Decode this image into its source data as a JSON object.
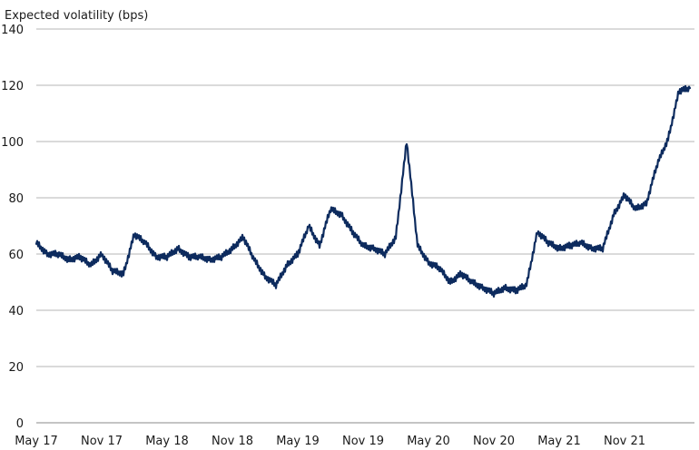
{
  "chart_data": {
    "type": "line",
    "title": "",
    "ylabel": "Expected volatility (bps)",
    "xlabel": "",
    "ylim": [
      0,
      140
    ],
    "yticks": [
      0,
      20,
      40,
      60,
      80,
      100,
      120,
      140
    ],
    "xlim": [
      "2017-05",
      "2022-05"
    ],
    "xticks": [
      "May 17",
      "Nov 17",
      "May 18",
      "Nov 18",
      "May 19",
      "Nov 19",
      "May 20",
      "Nov 20",
      "May 21",
      "Nov 21"
    ],
    "grid": "horizontal",
    "legend": "none",
    "line_color": "#0d2b5e",
    "series": [
      {
        "x": [
          "2017-05",
          "2017-06",
          "2017-07",
          "2017-08",
          "2017-09",
          "2017-10",
          "2017-11",
          "2017-12",
          "2018-01",
          "2018-02",
          "2018-03",
          "2018-04",
          "2018-05",
          "2018-06",
          "2018-07",
          "2018-08",
          "2018-09",
          "2018-10",
          "2018-11",
          "2018-12",
          "2019-01",
          "2019-02",
          "2019-03",
          "2019-04",
          "2019-05",
          "2019-06",
          "2019-07",
          "2019-08",
          "2019-09",
          "2019-10",
          "2019-11",
          "2019-12",
          "2020-01",
          "2020-02",
          "2020-03",
          "2020-04",
          "2020-05",
          "2020-06",
          "2020-07",
          "2020-08",
          "2020-09",
          "2020-10",
          "2020-11",
          "2020-12",
          "2021-01",
          "2021-02",
          "2021-03",
          "2021-04",
          "2021-05",
          "2021-06",
          "2021-07",
          "2021-08",
          "2021-09",
          "2021-10",
          "2021-11",
          "2021-12",
          "2022-01",
          "2022-02",
          "2022-03",
          "2022-04",
          "2022-05"
        ],
        "values": [
          64,
          60,
          60,
          58,
          59,
          56,
          60,
          54,
          53,
          67,
          64,
          59,
          59,
          62,
          59,
          59,
          58,
          59,
          62,
          66,
          58,
          52,
          49,
          56,
          60,
          70,
          63,
          76,
          74,
          68,
          63,
          62,
          60,
          66,
          100,
          63,
          57,
          55,
          50,
          53,
          50,
          48,
          46,
          48,
          47,
          49,
          68,
          64,
          62,
          63,
          64,
          62,
          62,
          74,
          81,
          76,
          78,
          92,
          101,
          118,
          119
        ]
      }
    ]
  }
}
